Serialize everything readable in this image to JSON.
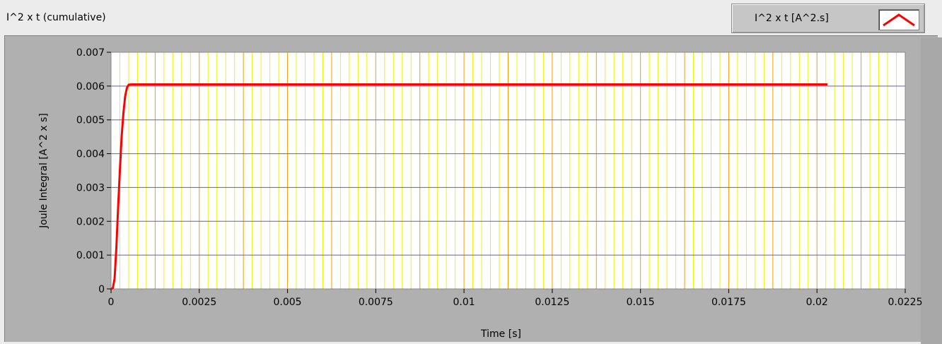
{
  "chart_title": "I^2 x t (cumulative)",
  "legend": {
    "label": "I^2 x t [A^2.s]",
    "line_color": "#ff0000"
  },
  "colors": {
    "plot_bg": "#ffffff",
    "major_grid_x": "#ff9a00",
    "minor_grid_x": "#f5f000",
    "major_grid_y": "#6060b0",
    "series": "#ff0000"
  },
  "chart_data": {
    "type": "line",
    "title": "I^2 x t (cumulative)",
    "xlabel": "Time [s]",
    "ylabel": "Joule Integral [A^2 x s]",
    "xlim": [
      0,
      0.0225
    ],
    "ylim": [
      0,
      0.007
    ],
    "x_ticks": [
      "0",
      "0.0025",
      "0.005",
      "0.0075",
      "0.01",
      "0.0125",
      "0.015",
      "0.0175",
      "0.02",
      "0.0225"
    ],
    "y_ticks": [
      "0",
      "0.001",
      "0.002",
      "0.003",
      "0.004",
      "0.005",
      "0.006",
      "0.007"
    ],
    "x_minor_step": 0.00025,
    "grid": true,
    "legend_position": "top-right",
    "series": [
      {
        "name": "I^2 x t [A^2.s]",
        "color": "#ff0000",
        "x": [
          0,
          5e-05,
          0.0001,
          0.00015,
          0.0002,
          0.00025,
          0.0003,
          0.00035,
          0.0004,
          0.00045,
          0.0005,
          0.0006,
          0.001,
          0.005,
          0.01,
          0.015,
          0.0203
        ],
        "y": [
          0,
          2e-05,
          0.0003,
          0.0012,
          0.0024,
          0.0035,
          0.0045,
          0.0052,
          0.0057,
          0.00595,
          0.00604,
          0.00605,
          0.00605,
          0.00605,
          0.00605,
          0.00605,
          0.00605
        ]
      }
    ]
  }
}
